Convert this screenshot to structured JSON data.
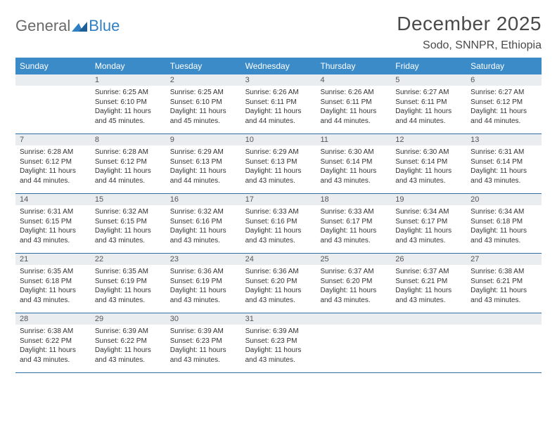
{
  "logo": {
    "word1": "General",
    "word2": "Blue"
  },
  "title": "December 2025",
  "location": "Sodo, SNNPR, Ethiopia",
  "colors": {
    "header_bg": "#3b8bc9",
    "header_text": "#ffffff",
    "daynum_bg": "#e9edef",
    "week_border": "#2f6ea3",
    "body_text": "#333333",
    "logo_grey": "#6a6a6a",
    "logo_blue": "#2f7fc2",
    "page_bg": "#ffffff"
  },
  "typography": {
    "title_fontsize": 28,
    "location_fontsize": 16,
    "dow_fontsize": 12,
    "daynum_fontsize": 11,
    "body_fontsize": 10
  },
  "dow": [
    "Sunday",
    "Monday",
    "Tuesday",
    "Wednesday",
    "Thursday",
    "Friday",
    "Saturday"
  ],
  "weeks": [
    [
      {
        "n": "",
        "sr": "",
        "ss": "",
        "dl": ""
      },
      {
        "n": "1",
        "sr": "Sunrise: 6:25 AM",
        "ss": "Sunset: 6:10 PM",
        "dl": "Daylight: 11 hours and 45 minutes."
      },
      {
        "n": "2",
        "sr": "Sunrise: 6:25 AM",
        "ss": "Sunset: 6:10 PM",
        "dl": "Daylight: 11 hours and 45 minutes."
      },
      {
        "n": "3",
        "sr": "Sunrise: 6:26 AM",
        "ss": "Sunset: 6:11 PM",
        "dl": "Daylight: 11 hours and 44 minutes."
      },
      {
        "n": "4",
        "sr": "Sunrise: 6:26 AM",
        "ss": "Sunset: 6:11 PM",
        "dl": "Daylight: 11 hours and 44 minutes."
      },
      {
        "n": "5",
        "sr": "Sunrise: 6:27 AM",
        "ss": "Sunset: 6:11 PM",
        "dl": "Daylight: 11 hours and 44 minutes."
      },
      {
        "n": "6",
        "sr": "Sunrise: 6:27 AM",
        "ss": "Sunset: 6:12 PM",
        "dl": "Daylight: 11 hours and 44 minutes."
      }
    ],
    [
      {
        "n": "7",
        "sr": "Sunrise: 6:28 AM",
        "ss": "Sunset: 6:12 PM",
        "dl": "Daylight: 11 hours and 44 minutes."
      },
      {
        "n": "8",
        "sr": "Sunrise: 6:28 AM",
        "ss": "Sunset: 6:12 PM",
        "dl": "Daylight: 11 hours and 44 minutes."
      },
      {
        "n": "9",
        "sr": "Sunrise: 6:29 AM",
        "ss": "Sunset: 6:13 PM",
        "dl": "Daylight: 11 hours and 44 minutes."
      },
      {
        "n": "10",
        "sr": "Sunrise: 6:29 AM",
        "ss": "Sunset: 6:13 PM",
        "dl": "Daylight: 11 hours and 43 minutes."
      },
      {
        "n": "11",
        "sr": "Sunrise: 6:30 AM",
        "ss": "Sunset: 6:14 PM",
        "dl": "Daylight: 11 hours and 43 minutes."
      },
      {
        "n": "12",
        "sr": "Sunrise: 6:30 AM",
        "ss": "Sunset: 6:14 PM",
        "dl": "Daylight: 11 hours and 43 minutes."
      },
      {
        "n": "13",
        "sr": "Sunrise: 6:31 AM",
        "ss": "Sunset: 6:14 PM",
        "dl": "Daylight: 11 hours and 43 minutes."
      }
    ],
    [
      {
        "n": "14",
        "sr": "Sunrise: 6:31 AM",
        "ss": "Sunset: 6:15 PM",
        "dl": "Daylight: 11 hours and 43 minutes."
      },
      {
        "n": "15",
        "sr": "Sunrise: 6:32 AM",
        "ss": "Sunset: 6:15 PM",
        "dl": "Daylight: 11 hours and 43 minutes."
      },
      {
        "n": "16",
        "sr": "Sunrise: 6:32 AM",
        "ss": "Sunset: 6:16 PM",
        "dl": "Daylight: 11 hours and 43 minutes."
      },
      {
        "n": "17",
        "sr": "Sunrise: 6:33 AM",
        "ss": "Sunset: 6:16 PM",
        "dl": "Daylight: 11 hours and 43 minutes."
      },
      {
        "n": "18",
        "sr": "Sunrise: 6:33 AM",
        "ss": "Sunset: 6:17 PM",
        "dl": "Daylight: 11 hours and 43 minutes."
      },
      {
        "n": "19",
        "sr": "Sunrise: 6:34 AM",
        "ss": "Sunset: 6:17 PM",
        "dl": "Daylight: 11 hours and 43 minutes."
      },
      {
        "n": "20",
        "sr": "Sunrise: 6:34 AM",
        "ss": "Sunset: 6:18 PM",
        "dl": "Daylight: 11 hours and 43 minutes."
      }
    ],
    [
      {
        "n": "21",
        "sr": "Sunrise: 6:35 AM",
        "ss": "Sunset: 6:18 PM",
        "dl": "Daylight: 11 hours and 43 minutes."
      },
      {
        "n": "22",
        "sr": "Sunrise: 6:35 AM",
        "ss": "Sunset: 6:19 PM",
        "dl": "Daylight: 11 hours and 43 minutes."
      },
      {
        "n": "23",
        "sr": "Sunrise: 6:36 AM",
        "ss": "Sunset: 6:19 PM",
        "dl": "Daylight: 11 hours and 43 minutes."
      },
      {
        "n": "24",
        "sr": "Sunrise: 6:36 AM",
        "ss": "Sunset: 6:20 PM",
        "dl": "Daylight: 11 hours and 43 minutes."
      },
      {
        "n": "25",
        "sr": "Sunrise: 6:37 AM",
        "ss": "Sunset: 6:20 PM",
        "dl": "Daylight: 11 hours and 43 minutes."
      },
      {
        "n": "26",
        "sr": "Sunrise: 6:37 AM",
        "ss": "Sunset: 6:21 PM",
        "dl": "Daylight: 11 hours and 43 minutes."
      },
      {
        "n": "27",
        "sr": "Sunrise: 6:38 AM",
        "ss": "Sunset: 6:21 PM",
        "dl": "Daylight: 11 hours and 43 minutes."
      }
    ],
    [
      {
        "n": "28",
        "sr": "Sunrise: 6:38 AM",
        "ss": "Sunset: 6:22 PM",
        "dl": "Daylight: 11 hours and 43 minutes."
      },
      {
        "n": "29",
        "sr": "Sunrise: 6:39 AM",
        "ss": "Sunset: 6:22 PM",
        "dl": "Daylight: 11 hours and 43 minutes."
      },
      {
        "n": "30",
        "sr": "Sunrise: 6:39 AM",
        "ss": "Sunset: 6:23 PM",
        "dl": "Daylight: 11 hours and 43 minutes."
      },
      {
        "n": "31",
        "sr": "Sunrise: 6:39 AM",
        "ss": "Sunset: 6:23 PM",
        "dl": "Daylight: 11 hours and 43 minutes."
      },
      {
        "n": "",
        "sr": "",
        "ss": "",
        "dl": ""
      },
      {
        "n": "",
        "sr": "",
        "ss": "",
        "dl": ""
      },
      {
        "n": "",
        "sr": "",
        "ss": "",
        "dl": ""
      }
    ]
  ]
}
